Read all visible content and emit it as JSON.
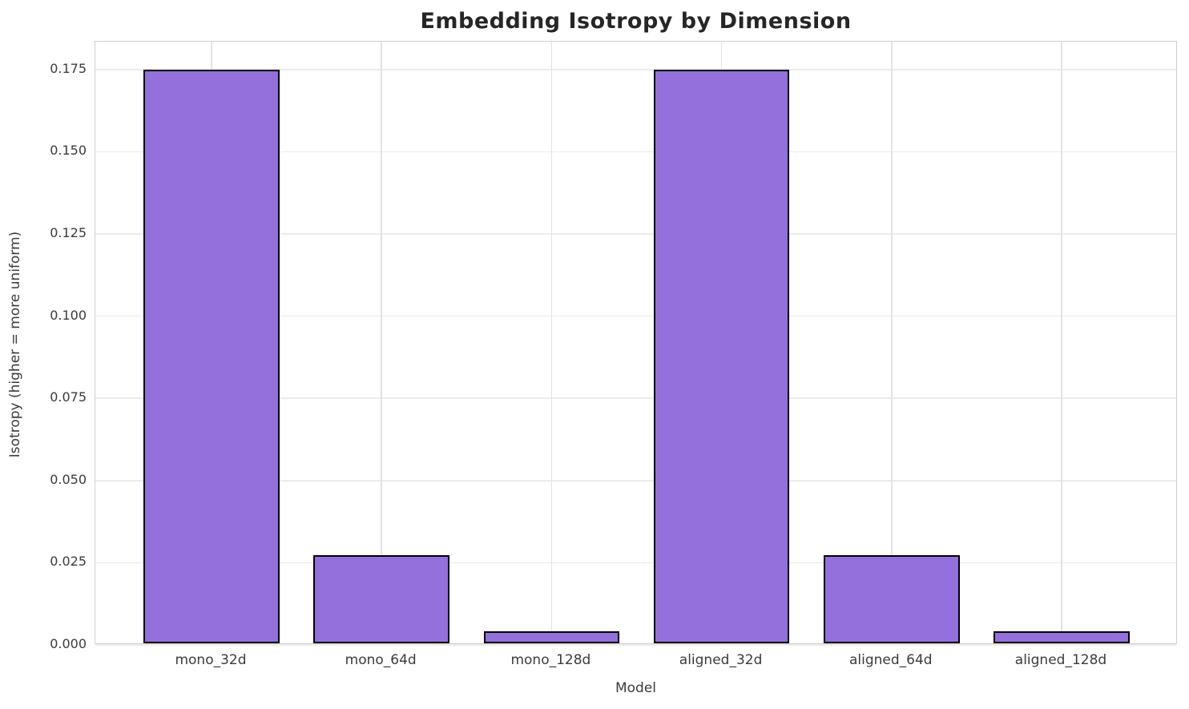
{
  "title": "Embedding Isotropy by Dimension",
  "chart_data": {
    "type": "bar",
    "title": "Embedding Isotropy by Dimension",
    "xlabel": "Model",
    "ylabel": "Isotropy (higher = more uniform)",
    "categories": [
      "mono_32d",
      "mono_64d",
      "mono_128d",
      "aligned_32d",
      "aligned_64d",
      "aligned_128d"
    ],
    "values": [
      0.1745,
      0.0268,
      0.0036,
      0.1745,
      0.0268,
      0.0036
    ],
    "ylim": [
      0,
      0.1835
    ],
    "yticks": [
      0,
      0.025,
      0.05,
      0.075,
      0.1,
      0.125,
      0.15,
      0.175
    ],
    "ytick_labels": [
      "0.000",
      "0.025",
      "0.050",
      "0.075",
      "0.100",
      "0.125",
      "0.150",
      "0.175"
    ],
    "grid": true,
    "legend": "none",
    "bar_color": "#9370DB",
    "bar_edge_color": "#000000"
  },
  "colors": {
    "bar_fill": "#9370DB",
    "bar_edge": "#000000",
    "gridline": "#ebebeb",
    "spine": "#cfcfcf",
    "title_text": "#262626",
    "tick_text": "#3b3b3b",
    "background": "#ffffff"
  }
}
